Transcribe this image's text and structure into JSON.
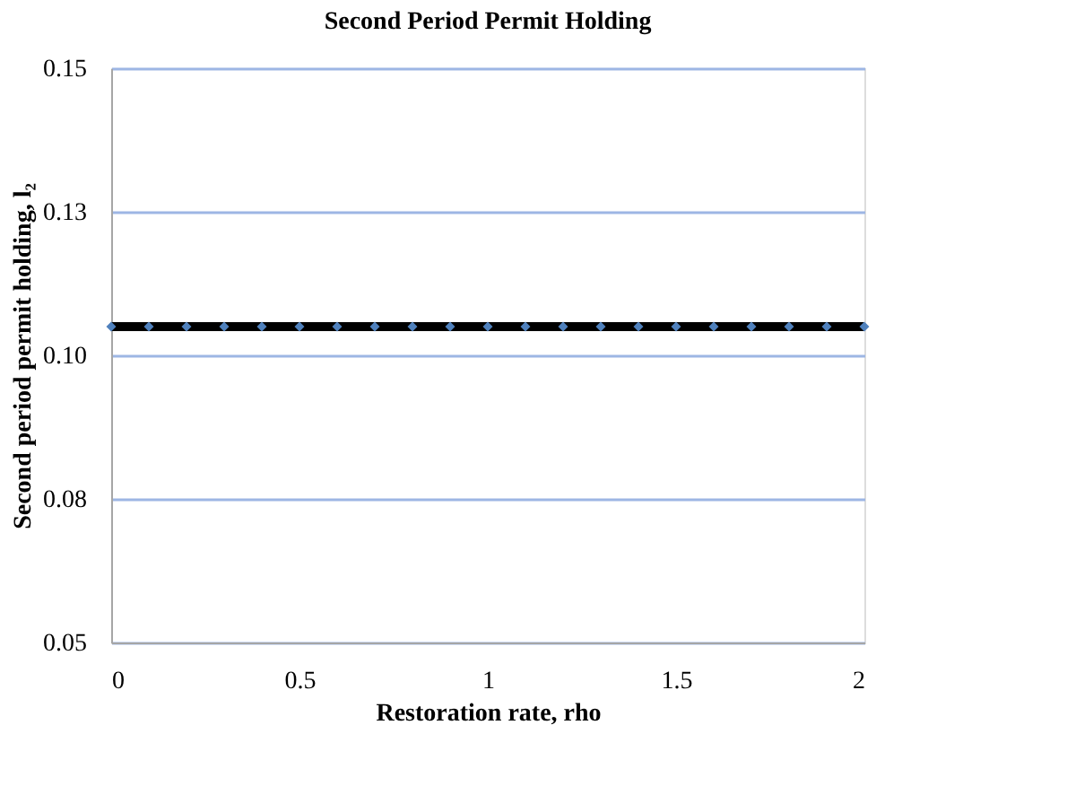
{
  "chart_data": {
    "type": "line",
    "title": "Second Period Permit Holding",
    "xlabel": "Restoration rate, rho",
    "ylabel": "Second period permit holding, l₂",
    "x": [
      0,
      0.1,
      0.2,
      0.3,
      0.4,
      0.5,
      0.6,
      0.7,
      0.8,
      0.9,
      1,
      1.1,
      1.2,
      1.3,
      1.4,
      1.5,
      1.6,
      1.7,
      1.8,
      1.9,
      2
    ],
    "series": [
      {
        "color": "#000000",
        "values": [
          0.105,
          0.105,
          0.105,
          0.105,
          0.105,
          0.105,
          0.105,
          0.105,
          0.105,
          0.105,
          0.105,
          0.105,
          0.105,
          0.105,
          0.105,
          0.105,
          0.105,
          0.105,
          0.105,
          0.105,
          0.105
        ]
      }
    ],
    "marker": "diamond",
    "xlim": [
      0,
      2
    ],
    "xticks": [
      0,
      0.5,
      1,
      1.5,
      2
    ],
    "ylim": [
      0.05,
      0.15
    ],
    "yticks": [
      {
        "value": 0.05,
        "label": "0.05"
      },
      {
        "value": 0.075,
        "label": "0.08"
      },
      {
        "value": 0.1,
        "label": "0.10"
      },
      {
        "value": 0.125,
        "label": "0.13"
      },
      {
        "value": 0.15,
        "label": "0.15"
      }
    ],
    "grid": "y",
    "line_style": "solid"
  }
}
